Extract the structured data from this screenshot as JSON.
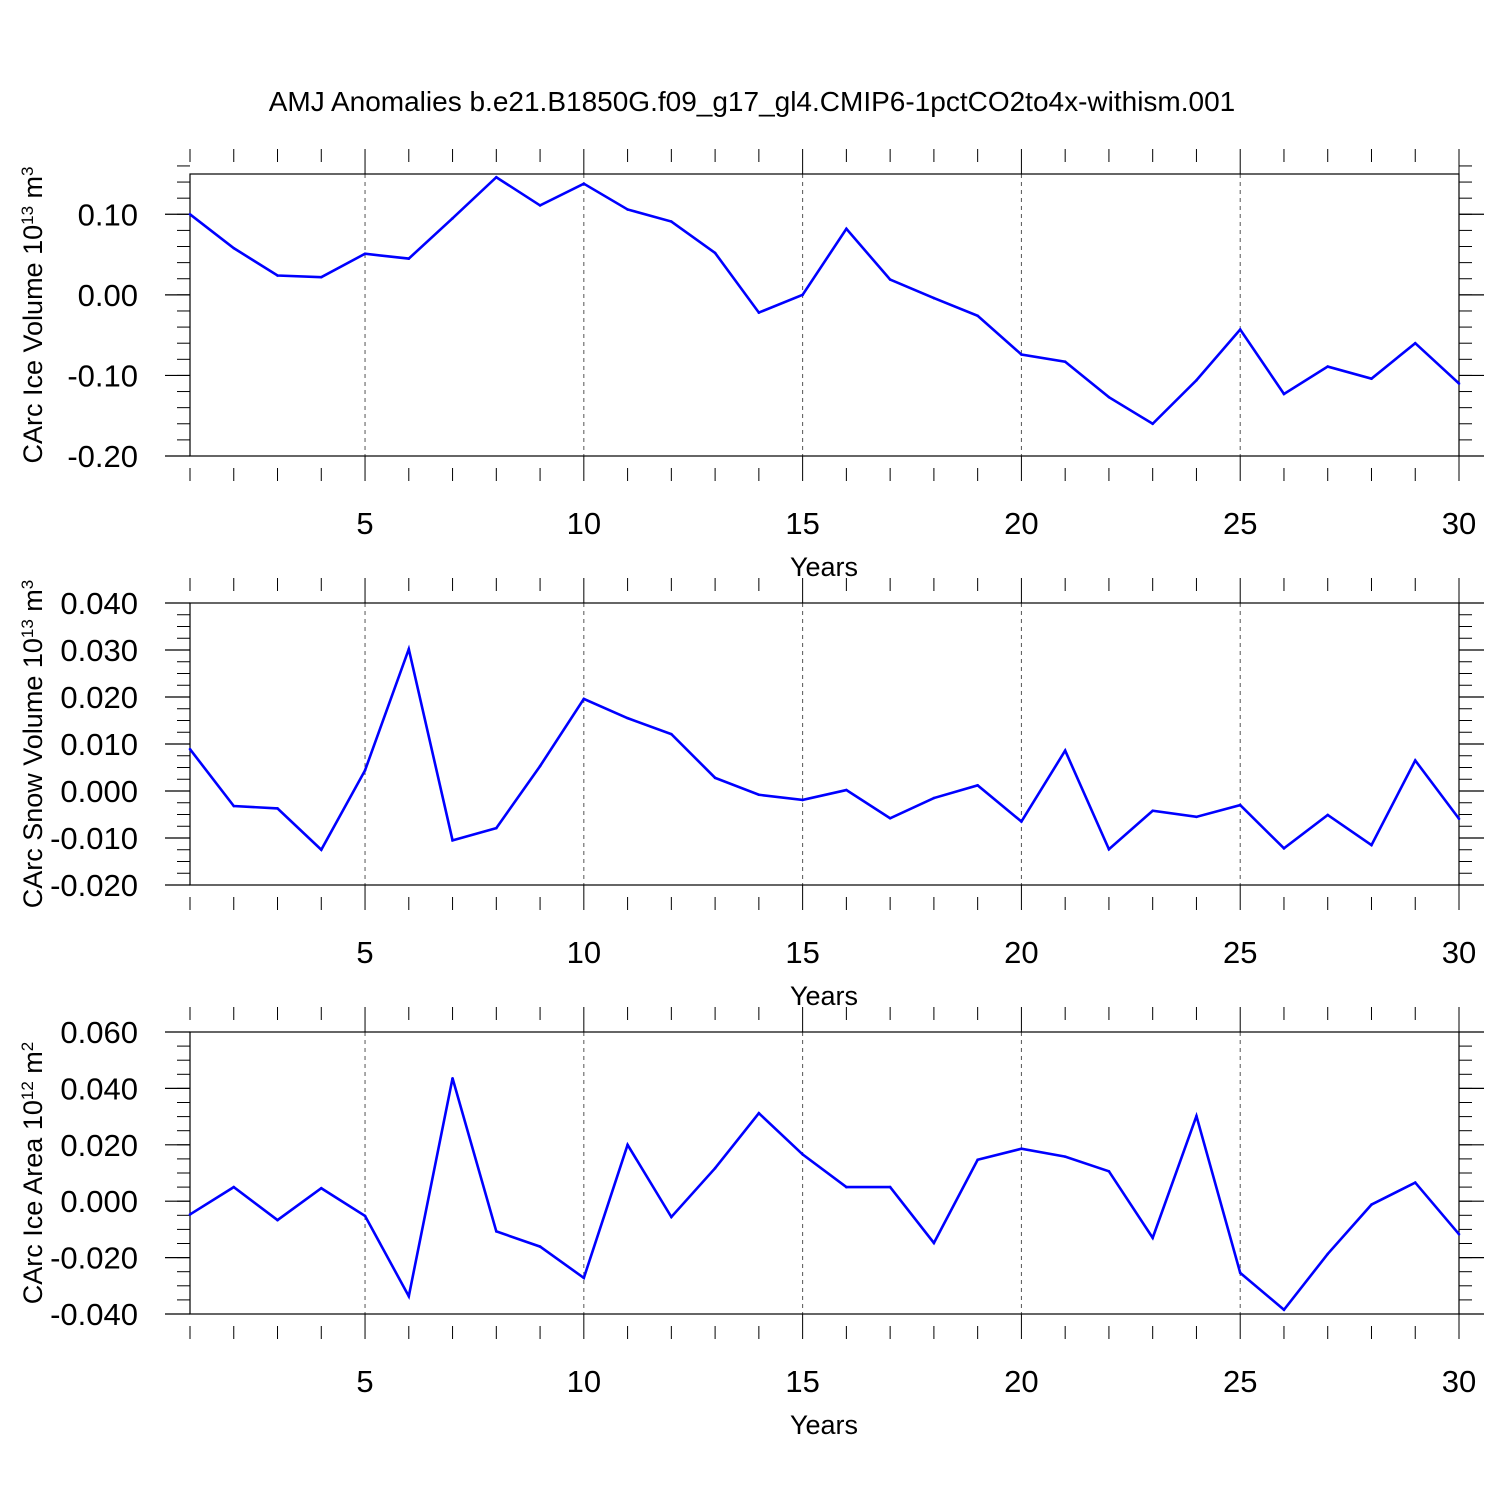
{
  "title": "AMJ Anomalies b.e21.B1850G.f09_g17_gl4.CMIP6-1pctCO2to4x-withism.001",
  "colors": {
    "series": "#0000ff",
    "axis": "#000000",
    "grid": "#555555"
  },
  "chart_data": [
    {
      "type": "line",
      "ylabel": "CArc Ice Volume 10",
      "ylabel_exp": "13",
      "ylabel_unit": " m",
      "ylabel_unit_exp": "3",
      "xlabel": "Years",
      "xlim": [
        1,
        30
      ],
      "ylim": [
        -0.2,
        0.15
      ],
      "x_ticks": [
        "5",
        "10",
        "15",
        "20",
        "25",
        "30"
      ],
      "y_ticks": [
        "0.10",
        "0.00",
        "-0.10",
        "-0.20"
      ],
      "x_grid": "dashed vertical lines at 5, 10, 15, 20, 25",
      "x": [
        1,
        2,
        3,
        4,
        5,
        6,
        7,
        8,
        9,
        10,
        11,
        12,
        13,
        14,
        15,
        16,
        17,
        18,
        19,
        20,
        21,
        22,
        23,
        24,
        25,
        26,
        27,
        28,
        29,
        30
      ],
      "values": [
        0.1,
        0.058,
        0.024,
        0.022,
        0.051,
        0.045,
        0.095,
        0.146,
        0.111,
        0.138,
        0.106,
        0.091,
        0.052,
        -0.022,
        0.0,
        0.082,
        0.019,
        -0.004,
        -0.026,
        -0.074,
        -0.083,
        -0.127,
        -0.16,
        -0.106,
        -0.043,
        -0.123,
        -0.089,
        -0.104,
        -0.06,
        -0.11
      ]
    },
    {
      "type": "line",
      "ylabel": "CArc Snow Volume 10",
      "ylabel_exp": "13",
      "ylabel_unit": " m",
      "ylabel_unit_exp": "3",
      "xlabel": "Years",
      "xlim": [
        1,
        30
      ],
      "ylim": [
        -0.02,
        0.04
      ],
      "x_ticks": [
        "5",
        "10",
        "15",
        "20",
        "25",
        "30"
      ],
      "y_ticks": [
        "0.040",
        "0.030",
        "0.020",
        "0.010",
        "0.000",
        "-0.010",
        "-0.020"
      ],
      "x_grid": "dashed vertical lines at 5, 10, 15, 20, 25",
      "x": [
        1,
        2,
        3,
        4,
        5,
        6,
        7,
        8,
        9,
        10,
        11,
        12,
        13,
        14,
        15,
        16,
        17,
        18,
        19,
        20,
        21,
        22,
        23,
        24,
        25,
        26,
        27,
        28,
        29,
        30
      ],
      "values": [
        0.0089,
        -0.0032,
        -0.0037,
        -0.0125,
        0.0044,
        0.0302,
        -0.0105,
        -0.0079,
        0.0053,
        0.0196,
        0.0155,
        0.0121,
        0.0028,
        -0.0008,
        -0.0019,
        0.0002,
        -0.0058,
        -0.0015,
        0.0012,
        -0.0065,
        0.0086,
        -0.0124,
        -0.0042,
        -0.0055,
        -0.003,
        -0.0122,
        -0.0051,
        -0.0115,
        0.0065,
        -0.0059
      ]
    },
    {
      "type": "line",
      "ylabel": "CArc Ice Area 10",
      "ylabel_exp": "12",
      "ylabel_unit": " m",
      "ylabel_unit_exp": "2",
      "xlabel": "Years",
      "xlim": [
        1,
        30
      ],
      "ylim": [
        -0.04,
        0.06
      ],
      "x_ticks": [
        "5",
        "10",
        "15",
        "20",
        "25",
        "30"
      ],
      "y_ticks": [
        "0.060",
        "0.040",
        "0.020",
        "0.000",
        "-0.020",
        "-0.040"
      ],
      "x_grid": "dashed vertical lines at 5, 10, 15, 20, 25",
      "x": [
        1,
        2,
        3,
        4,
        5,
        6,
        7,
        8,
        9,
        10,
        11,
        12,
        13,
        14,
        15,
        16,
        17,
        18,
        19,
        20,
        21,
        22,
        23,
        24,
        25,
        26,
        27,
        28,
        29,
        30
      ],
      "values": [
        -0.0047,
        0.005,
        -0.0067,
        0.0046,
        -0.0052,
        -0.0337,
        0.0436,
        -0.0107,
        -0.0161,
        -0.0272,
        0.02,
        -0.0056,
        0.0117,
        0.0312,
        0.0166,
        0.005,
        0.005,
        -0.0148,
        0.0147,
        0.0186,
        0.0158,
        0.0106,
        -0.013,
        0.0302,
        -0.0254,
        -0.0385,
        -0.0187,
        -0.0012,
        0.0066,
        -0.0117
      ]
    }
  ]
}
